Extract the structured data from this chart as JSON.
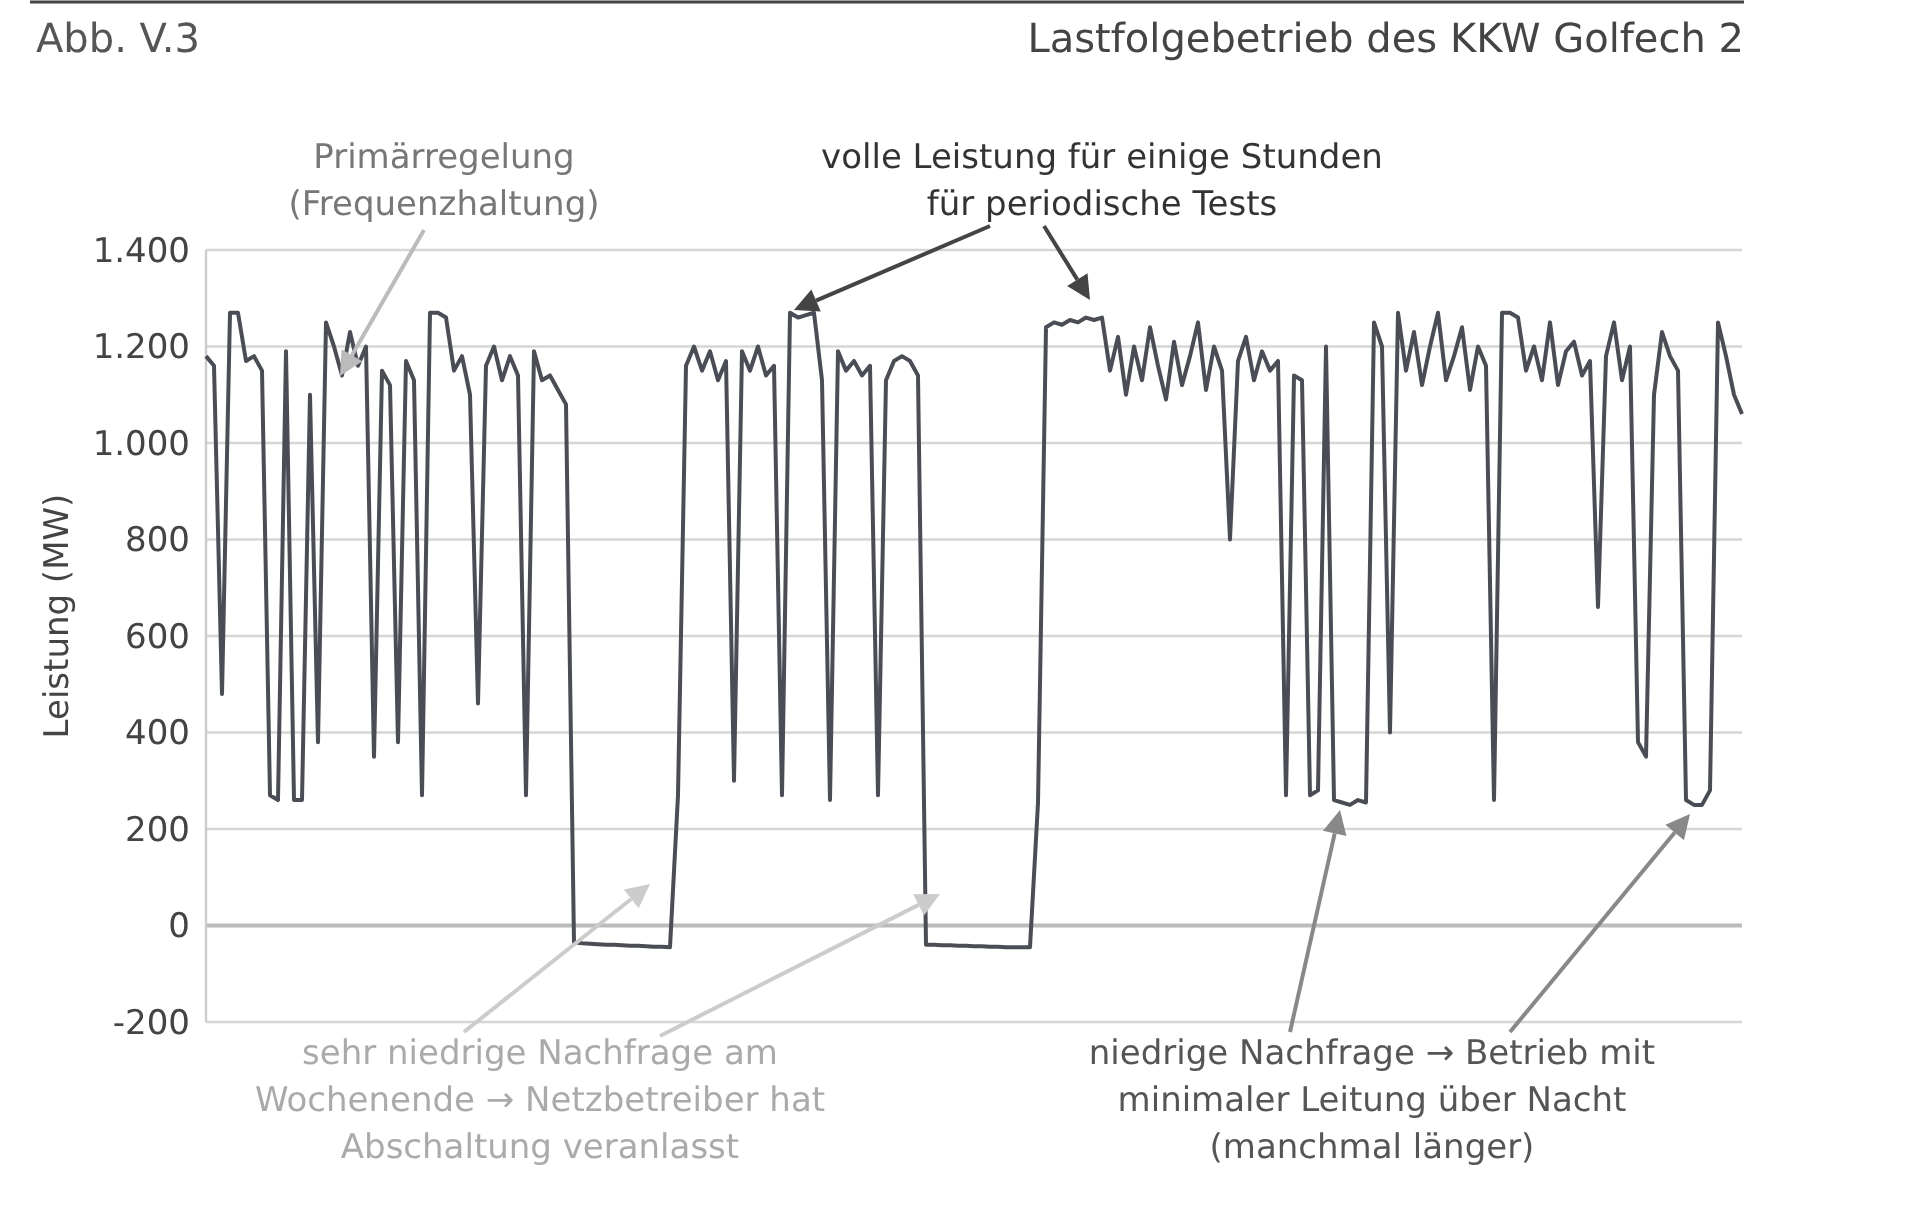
{
  "chart_data": {
    "type": "line",
    "title": "Lastfolgebetrieb des KKW Golfech 2",
    "ylabel": "Leistung (MW)",
    "annotations": [
      "Abb. V.3",
      "Primärregelung\n(Frequenzhaltung)",
      "volle Leistung für einige Stunden\nfür periodische Tests",
      "sehr niedrige Nachfrage am\nWochenende → Netzbetreiber hat\nAbschaltung veranlasst",
      "niedrige Nachfrage → Betrieb mit\nminimaler Leitung über Nacht\n(manchmal länger)"
    ],
    "categories": [
      null,
      null,
      null,
      null,
      null,
      null,
      null,
      null,
      null,
      null,
      null,
      null,
      null,
      null,
      null,
      null,
      null,
      null,
      null,
      null,
      null,
      null,
      null,
      null,
      null,
      null,
      null,
      null,
      null,
      null,
      null,
      null,
      null,
      null,
      null,
      null,
      null,
      null,
      null,
      null,
      null,
      null,
      null,
      null,
      null,
      null,
      null,
      null,
      null,
      null,
      null,
      null,
      null,
      null,
      null,
      null,
      null,
      null,
      null,
      null,
      null,
      null,
      null,
      null,
      null,
      null,
      null,
      null,
      null,
      null,
      null,
      null,
      null,
      null,
      null,
      null,
      null,
      null,
      null,
      null,
      null,
      null,
      null,
      null,
      null,
      null,
      null,
      null,
      null,
      null,
      null,
      null,
      null,
      null,
      null,
      null,
      null,
      null,
      null,
      null,
      null,
      null,
      null,
      null,
      null,
      null,
      null,
      null,
      null,
      null,
      null,
      null,
      null,
      null,
      null,
      null,
      null,
      null,
      null,
      null,
      null,
      null,
      null,
      null,
      null,
      null,
      null,
      null,
      null,
      null,
      null,
      null,
      null,
      null,
      null,
      null,
      null,
      null,
      null,
      null,
      null,
      null,
      null,
      null,
      null,
      null,
      null,
      null,
      null,
      null,
      null,
      null,
      null,
      null,
      null,
      null,
      null,
      null,
      null,
      null,
      null,
      null,
      null,
      null,
      null,
      null,
      null,
      null,
      null,
      null,
      null,
      null,
      null,
      null,
      null,
      null,
      null,
      null,
      null,
      null,
      null,
      null,
      null,
      null,
      null,
      null,
      null,
      null,
      null,
      null,
      null,
      null,
      null
    ],
    "series": [
      {
        "color": "#4a4d55",
        "values": [
          1180,
          1160,
          480,
          1270,
          1270,
          1170,
          1180,
          1150,
          270,
          260,
          1190,
          260,
          260,
          1100,
          380,
          1250,
          1200,
          1140,
          1230,
          1160,
          1200,
          350,
          1150,
          1120,
          380,
          1170,
          1130,
          270,
          1270,
          1270,
          1260,
          1150,
          1180,
          1100,
          460,
          1160,
          1200,
          1130,
          1180,
          1140,
          270,
          1190,
          1130,
          1140,
          1110,
          1080,
          -35,
          -37,
          -38,
          -39,
          -40,
          -40,
          -41,
          -42,
          -42,
          -43,
          -44,
          -44,
          -45,
          270,
          1160,
          1200,
          1150,
          1190,
          1130,
          1170,
          300,
          1190,
          1150,
          1200,
          1140,
          1160,
          270,
          1270,
          1260,
          1265,
          1270,
          1130,
          260,
          1190,
          1150,
          1170,
          1140,
          1160,
          270,
          1130,
          1170,
          1180,
          1170,
          1140,
          -40,
          -40,
          -41,
          -41,
          -42,
          -42,
          -43,
          -43,
          -44,
          -44,
          -45,
          -45,
          -45,
          -45,
          254,
          1240,
          1250,
          1245,
          1255,
          1250,
          1260,
          1255,
          1260,
          1150,
          1220,
          1100,
          1200,
          1130,
          1240,
          1160,
          1090,
          1210,
          1120,
          1180,
          1250,
          1110,
          1200,
          1150,
          800,
          1170,
          1220,
          1130,
          1190,
          1150,
          1170,
          270,
          1140,
          1130,
          270,
          280,
          1200,
          260,
          255,
          250,
          260,
          255,
          1250,
          1200,
          400,
          1270,
          1150,
          1230,
          1120,
          1200,
          1270,
          1130,
          1180,
          1240,
          1110,
          1200,
          1160,
          260,
          1270,
          1270,
          1260,
          1150,
          1200,
          1130,
          1250,
          1120,
          1190,
          1210,
          1140,
          1170,
          660,
          1180,
          1250,
          1130,
          1200,
          380,
          350,
          1100,
          1230,
          1180,
          1150,
          260,
          250,
          250,
          280,
          1250,
          1180,
          1100,
          1060
        ]
      }
    ],
    "ylim": [
      -200,
      1400
    ],
    "yticks": [
      -200,
      0,
      200,
      400,
      600,
      800,
      {
        "value": 1000,
        "label": "1.000"
      },
      {
        "value": 1200,
        "label": "1.200"
      },
      {
        "value": 1400,
        "label": "1.400"
      }
    ],
    "grid": "y"
  }
}
